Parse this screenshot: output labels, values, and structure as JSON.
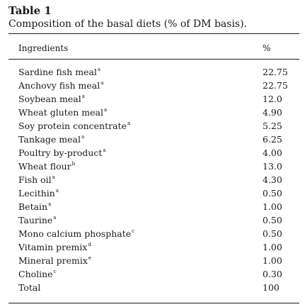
{
  "table": {
    "label": "Table 1",
    "title": "Composition of the basal diets (% of DM basis).",
    "headers": {
      "ingredient": "Ingredients",
      "value": "%"
    },
    "rows": [
      {
        "ingredient": "Sardine fish meal",
        "note": "a",
        "value": "22.75"
      },
      {
        "ingredient": "Anchovy fish meal",
        "note": "a",
        "value": "22.75"
      },
      {
        "ingredient": "Soybean meal",
        "note": "a",
        "value": "12.0"
      },
      {
        "ingredient": "Wheat gluten meal",
        "note": "a",
        "value": "4.90"
      },
      {
        "ingredient": "Soy protein concentrate",
        "note": "a",
        "value": "5.25"
      },
      {
        "ingredient": "Tankage meal",
        "note": "a",
        "value": "6.25"
      },
      {
        "ingredient": "Poultry by-product",
        "note": "a",
        "value": "4.00"
      },
      {
        "ingredient": "Wheat flour",
        "note": "b",
        "value": "13.0"
      },
      {
        "ingredient": "Fish oil",
        "note": "a",
        "value": "4.30"
      },
      {
        "ingredient": "Lecithin",
        "note": "a",
        "value": "0.50"
      },
      {
        "ingredient": "Betain",
        "note": "a",
        "value": "1.00"
      },
      {
        "ingredient": "Taurine",
        "note": "a",
        "value": "0.50"
      },
      {
        "ingredient": "Mono calcium phosphate",
        "note": "c",
        "value": "0.50"
      },
      {
        "ingredient": "Vitamin premix",
        "note": "d",
        "value": "1.00"
      },
      {
        "ingredient": "Mineral premix",
        "note": "e",
        "value": "1.00"
      },
      {
        "ingredient": "Choline",
        "note": "c",
        "value": "0.30"
      },
      {
        "ingredient": "Total",
        "note": "",
        "value": "100"
      }
    ]
  }
}
